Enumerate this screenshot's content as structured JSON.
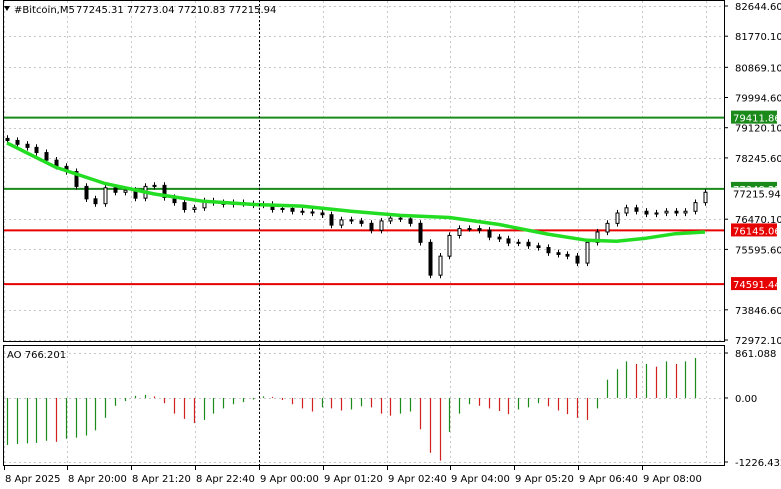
{
  "header": {
    "symbol": "#Bitcoin,M5",
    "values": "77245.31 77273.04 77210.83 77215.94"
  },
  "indicator": {
    "label": "AO 766.201",
    "ticks": [
      "861.088",
      "0.00",
      "-1226.432"
    ],
    "tick_values": [
      861.088,
      0,
      -1226.432
    ]
  },
  "price_axis": {
    "ticks": [
      "82644.60",
      "81770.10",
      "80869.10",
      "79994.60",
      "79120.10",
      "78245.60",
      "76470.10",
      "75595.60",
      "73846.60",
      "72972.10"
    ],
    "tick_values": [
      82644.6,
      81770.1,
      80869.1,
      79994.6,
      79120.1,
      78245.6,
      76470.1,
      75595.6,
      73846.6,
      72972.1
    ]
  },
  "levels": [
    {
      "label": "79411.86",
      "price": 79411.86,
      "color": "#1a8a1a"
    },
    {
      "label": "77348.25",
      "price": 77348.25,
      "color": "#1a8a1a"
    },
    {
      "label": "76145.06",
      "price": 76145.06,
      "color": "#e60000"
    },
    {
      "label": "74591.44",
      "price": 74591.44,
      "color": "#e60000"
    }
  ],
  "current_price": {
    "label": "77215.94",
    "price": 77215.94
  },
  "time_axis": {
    "ticks": [
      "8 Apr 2025",
      "8 Apr 20:00",
      "8 Apr 21:20",
      "8 Apr 22:40",
      "9 Apr 00:00",
      "9 Apr 01:20",
      "9 Apr 02:40",
      "9 Apr 04:00",
      "9 Apr 05:20",
      "9 Apr 06:40",
      "9 Apr 08:00"
    ]
  },
  "colors": {
    "ma_line": "#22dd22",
    "support": "#e60000",
    "resistance": "#1a8a1a",
    "ao_up": "#1a8a1a",
    "ao_down": "#d02020",
    "grid": "#c8c8c8"
  },
  "chart_data": [
    {
      "type": "candlestick",
      "title": "#Bitcoin,M5",
      "timeframe": "M5",
      "ylim": [
        72972.1,
        82644.6
      ],
      "grid": true,
      "ohlc_last": {
        "open": 77245.31,
        "high": 77273.04,
        "low": 77210.83,
        "close": 77215.94
      },
      "x": [
        0,
        2,
        4,
        6,
        8,
        10,
        12,
        14,
        16,
        18,
        20,
        22,
        24,
        26,
        28,
        30,
        32,
        34,
        36,
        38,
        40,
        42,
        44,
        46,
        48,
        50,
        52,
        54,
        56,
        58,
        60,
        62,
        64,
        66,
        68,
        70,
        72,
        74,
        76,
        78,
        80,
        82,
        84,
        86,
        88,
        90,
        92,
        94,
        96,
        98,
        100,
        102,
        104,
        106,
        108,
        110,
        112,
        114,
        116,
        118,
        120,
        122,
        124,
        126,
        128,
        130,
        132,
        134,
        136,
        138,
        140,
        142
      ],
      "close_approx": [
        78750,
        78640,
        78550,
        78400,
        78180,
        78000,
        77850,
        77420,
        77060,
        76920,
        77380,
        77250,
        77310,
        77080,
        77420,
        77450,
        77100,
        76950,
        76750,
        76800,
        77000,
        76950,
        76900,
        76950,
        76920,
        76880,
        76900,
        76750,
        76780,
        76700,
        76680,
        76650,
        76600,
        76300,
        76450,
        76420,
        76350,
        76150,
        76420,
        76500,
        76480,
        76350,
        75800,
        74850,
        75400,
        76000,
        76200,
        76200,
        76150,
        75950,
        75900,
        75780,
        75800,
        75700,
        75650,
        75500,
        75450,
        75400,
        75200,
        75800,
        76100,
        76350,
        76650,
        76800,
        76700,
        76620,
        76650,
        76700,
        76650,
        76700,
        76950,
        77250
      ],
      "series": [
        {
          "name": "Moving Average",
          "x": [
            0,
            10,
            20,
            30,
            40,
            50,
            60,
            70,
            80,
            90,
            100,
            110,
            118,
            124,
            130,
            136,
            142
          ],
          "values": [
            78680,
            77970,
            77500,
            77200,
            76990,
            76900,
            76850,
            76700,
            76580,
            76520,
            76320,
            76040,
            75860,
            75830,
            75920,
            76050,
            76100
          ]
        }
      ],
      "horizontal_levels": [
        79411.86,
        77348.25,
        76145.06,
        74591.44
      ]
    },
    {
      "type": "bar",
      "title": "AO",
      "ylim": [
        -1226.432,
        861.088
      ],
      "x": [
        0,
        2,
        4,
        6,
        8,
        10,
        12,
        14,
        16,
        18,
        20,
        22,
        24,
        26,
        28,
        30,
        32,
        34,
        36,
        38,
        40,
        42,
        44,
        46,
        48,
        50,
        52,
        54,
        56,
        58,
        60,
        62,
        64,
        66,
        68,
        70,
        72,
        74,
        76,
        78,
        80,
        82,
        84,
        86,
        88,
        90,
        92,
        94,
        96,
        98,
        100,
        102,
        104,
        106,
        108,
        110,
        112,
        114,
        116,
        118,
        120,
        122,
        124,
        126,
        128,
        130,
        132,
        134,
        136,
        138,
        140
      ],
      "values": [
        -900,
        -880,
        -870,
        -860,
        -820,
        -840,
        -780,
        -760,
        -720,
        -620,
        -380,
        -150,
        -60,
        40,
        60,
        30,
        -100,
        -300,
        -400,
        -480,
        -420,
        -300,
        -200,
        -120,
        -80,
        -30,
        30,
        20,
        -40,
        -120,
        -200,
        -260,
        -180,
        -200,
        -240,
        -220,
        -160,
        -180,
        -300,
        -340,
        -300,
        -260,
        -600,
        -1050,
        -1200,
        -650,
        -300,
        -120,
        -150,
        -200,
        -250,
        -310,
        -220,
        -180,
        -100,
        -160,
        -240,
        -310,
        -380,
        -420,
        -200,
        350,
        550,
        700,
        650,
        650,
        600,
        700,
        650,
        700,
        766
      ]
    }
  ]
}
